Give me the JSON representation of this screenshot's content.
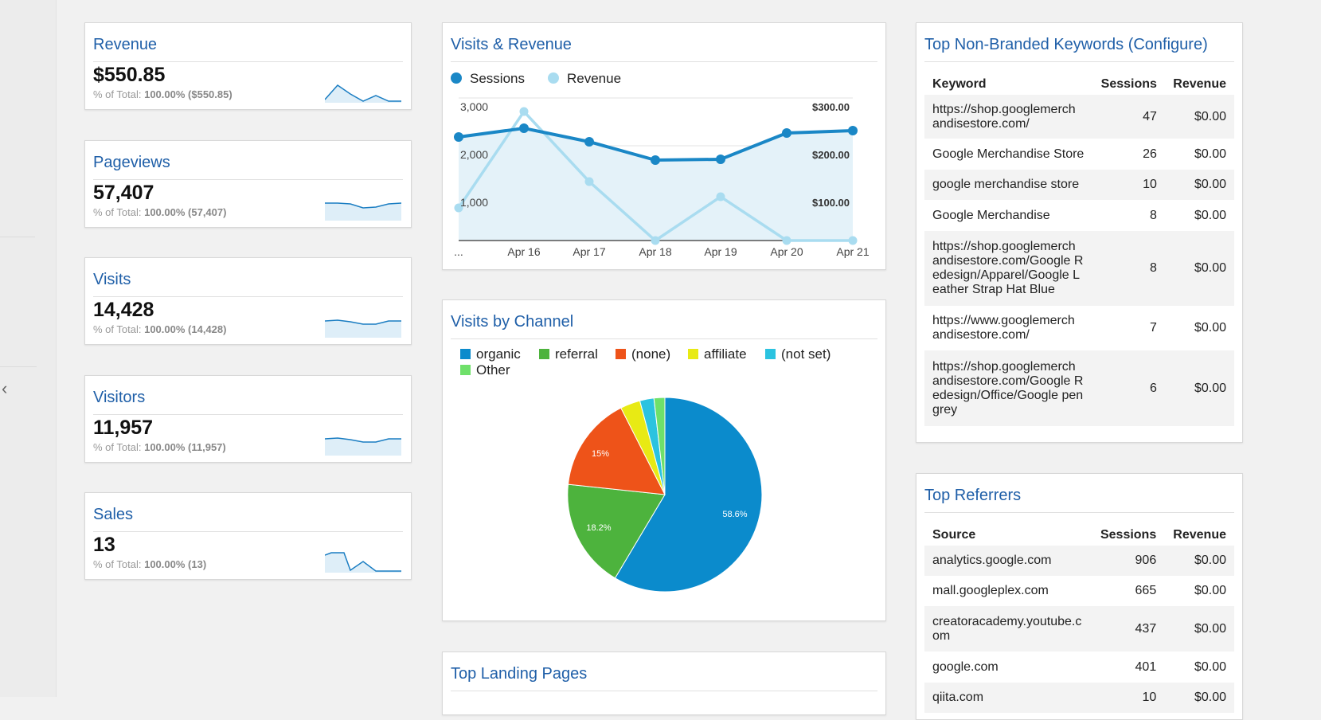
{
  "kpis": [
    {
      "title": "Revenue",
      "value": "$550.85",
      "sub_prefix": "% of Total:",
      "sub_value": "100.00% ($550.85)"
    },
    {
      "title": "Pageviews",
      "value": "57,407",
      "sub_prefix": "% of Total:",
      "sub_value": "100.00% (57,407)"
    },
    {
      "title": "Visits",
      "value": "14,428",
      "sub_prefix": "% of Total:",
      "sub_value": "100.00% (14,428)"
    },
    {
      "title": "Visitors",
      "value": "11,957",
      "sub_prefix": "% of Total:",
      "sub_value": "100.00% (11,957)"
    },
    {
      "title": "Sales",
      "value": "13",
      "sub_prefix": "% of Total:",
      "sub_value": "100.00% (13)"
    }
  ],
  "visits_revenue": {
    "title": "Visits & Revenue",
    "legend": {
      "sessions": "Sessions",
      "revenue": "Revenue"
    },
    "left_ticks": [
      "3,000",
      "2,000",
      "1,000"
    ],
    "right_ticks": [
      "$300.00",
      "$200.00",
      "$100.00"
    ],
    "x_labels": [
      "...",
      "Apr 16",
      "Apr 17",
      "Apr 18",
      "Apr 19",
      "Apr 20",
      "Apr 21"
    ]
  },
  "visits_by_channel": {
    "title": "Visits by Channel",
    "legend": [
      "organic",
      "referral",
      "(none)",
      "affiliate",
      "(not set)",
      "Other"
    ],
    "slice_labels": {
      "organic": "58.6%",
      "referral": "18.2%",
      "none": "15%"
    }
  },
  "top_landing_pages": {
    "title": "Top Landing Pages"
  },
  "keywords": {
    "title": "Top Non-Branded Keywords (Configure)",
    "headers": [
      "Keyword",
      "Sessions",
      "Revenue"
    ],
    "rows": [
      {
        "keyword": [
          "https://shop.googlemerch",
          "andisestore.com/"
        ],
        "sessions": "47",
        "revenue": "$0.00"
      },
      {
        "keyword": [
          "Google Merchandise Store"
        ],
        "sessions": "26",
        "revenue": "$0.00"
      },
      {
        "keyword": [
          "google merchandise store"
        ],
        "sessions": "10",
        "revenue": "$0.00"
      },
      {
        "keyword": [
          "Google Merchandise"
        ],
        "sessions": "8",
        "revenue": "$0.00"
      },
      {
        "keyword": [
          "https://shop.googlemerch",
          "andisestore.com/Google R",
          "edesign/Apparel/Google L",
          "eather Strap Hat Blue"
        ],
        "sessions": "8",
        "revenue": "$0.00"
      },
      {
        "keyword": [
          "https://www.googlemerch",
          "andisestore.com/"
        ],
        "sessions": "7",
        "revenue": "$0.00"
      },
      {
        "keyword": [
          "https://shop.googlemerch",
          "andisestore.com/Google R",
          "edesign/Office/Google pen",
          "grey"
        ],
        "sessions": "6",
        "revenue": "$0.00"
      }
    ]
  },
  "referrers": {
    "title": "Top Referrers",
    "headers": [
      "Source",
      "Sessions",
      "Revenue"
    ],
    "rows": [
      {
        "source": [
          "analytics.google.com"
        ],
        "sessions": "906",
        "revenue": "$0.00"
      },
      {
        "source": [
          "mall.googleplex.com"
        ],
        "sessions": "665",
        "revenue": "$0.00"
      },
      {
        "source": [
          "creatoracademy.youtube.c",
          "om"
        ],
        "sessions": "437",
        "revenue": "$0.00"
      },
      {
        "source": [
          "google.com"
        ],
        "sessions": "401",
        "revenue": "$0.00"
      },
      {
        "source": [
          "qiita.com"
        ],
        "sessions": "10",
        "revenue": "$0.00"
      }
    ]
  },
  "colors": {
    "title_blue": "#1f5fa8",
    "sessions": "#1a87c6",
    "revenue": "#a9dcf0",
    "organic": "#0b8bcc",
    "referral": "#4db33d",
    "none": "#ee5319",
    "affiliate": "#e8ea14",
    "not_set": "#2bc3e0",
    "other": "#6fe06a"
  }
}
